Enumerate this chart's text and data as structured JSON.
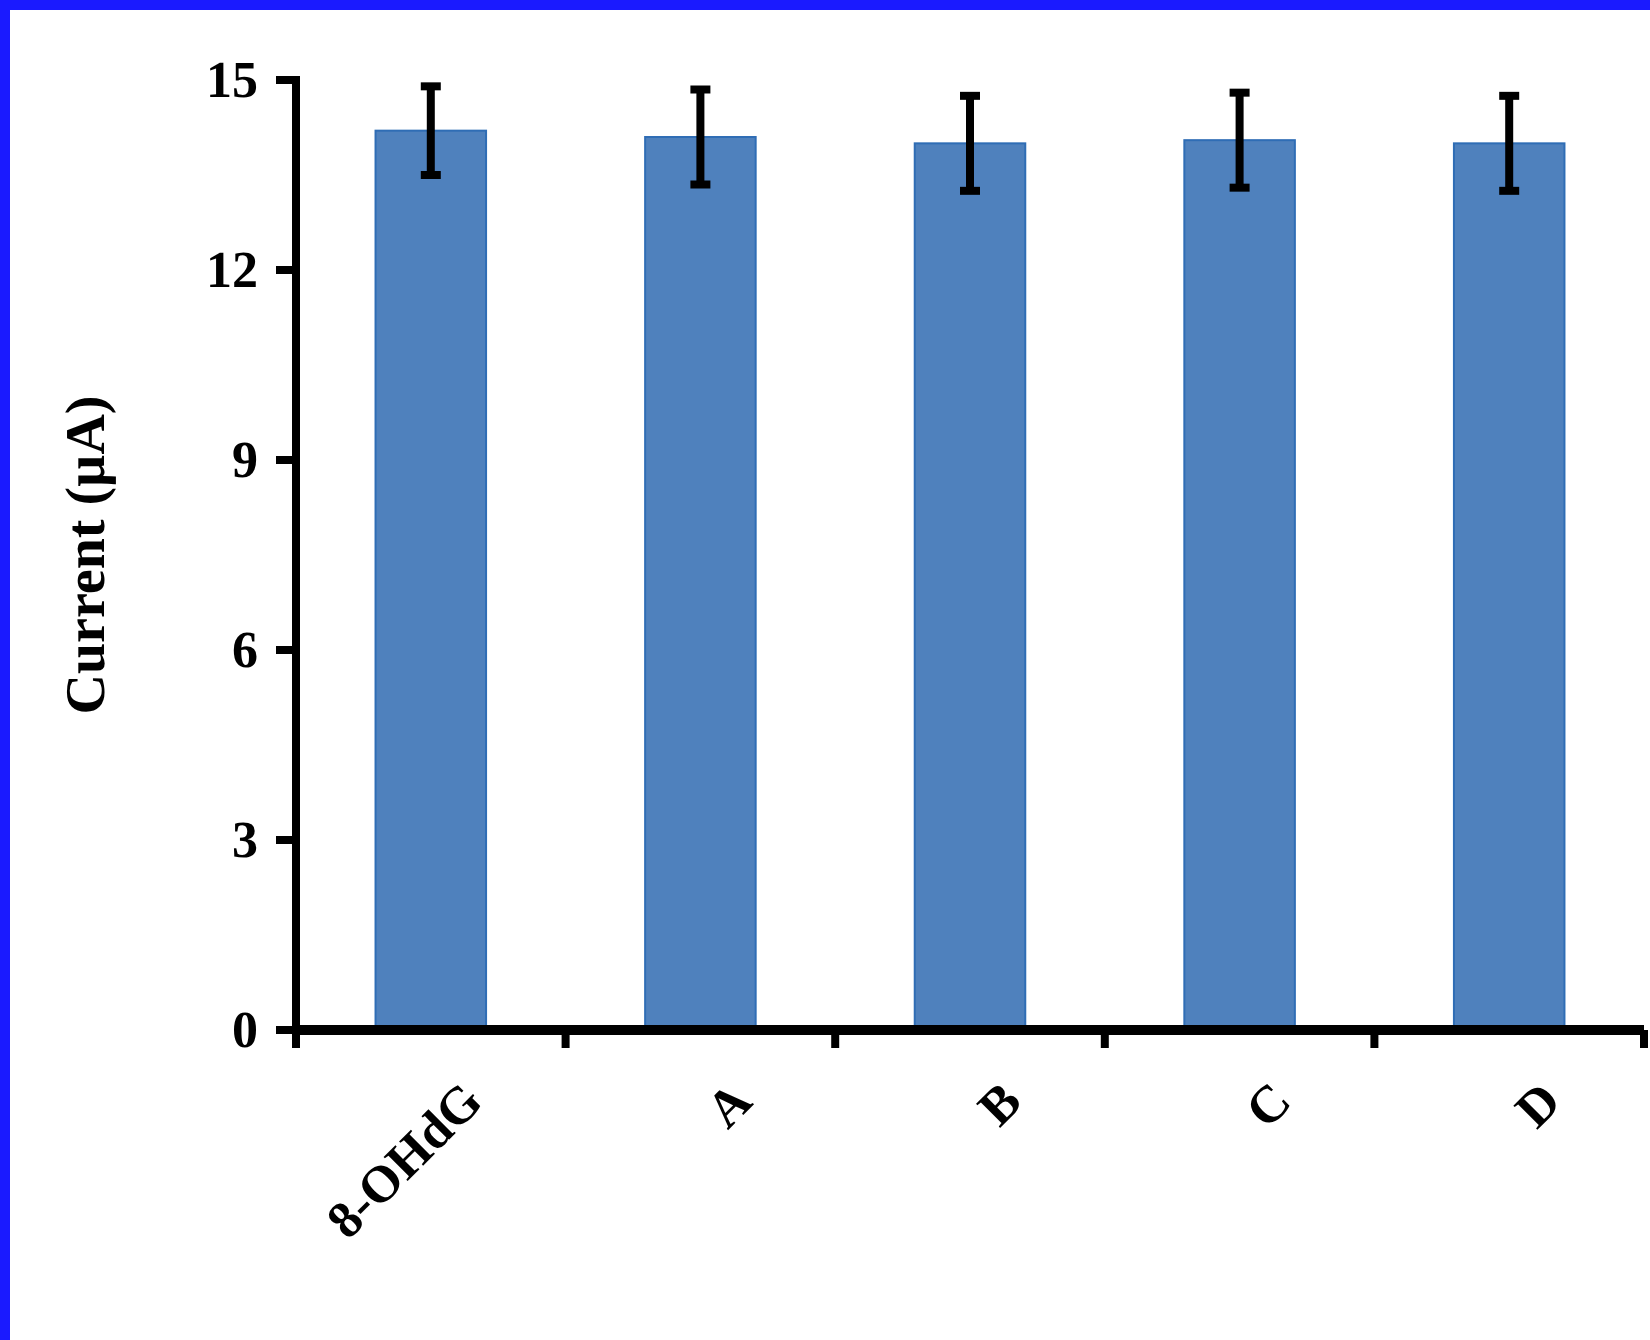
{
  "chart_data": {
    "type": "bar",
    "ylabel": "Current (µA)",
    "categories": [
      "8-OHdG",
      "A",
      "B",
      "C",
      "D"
    ],
    "values": [
      14.2,
      14.1,
      14.0,
      14.05,
      14.0
    ],
    "errors": [
      0.7,
      0.75,
      0.75,
      0.75,
      0.75
    ],
    "color": "#4f81bd",
    "ylim": [
      0,
      15
    ],
    "yticks": [
      0,
      3,
      6,
      9,
      12,
      15
    ],
    "grid": false
  }
}
